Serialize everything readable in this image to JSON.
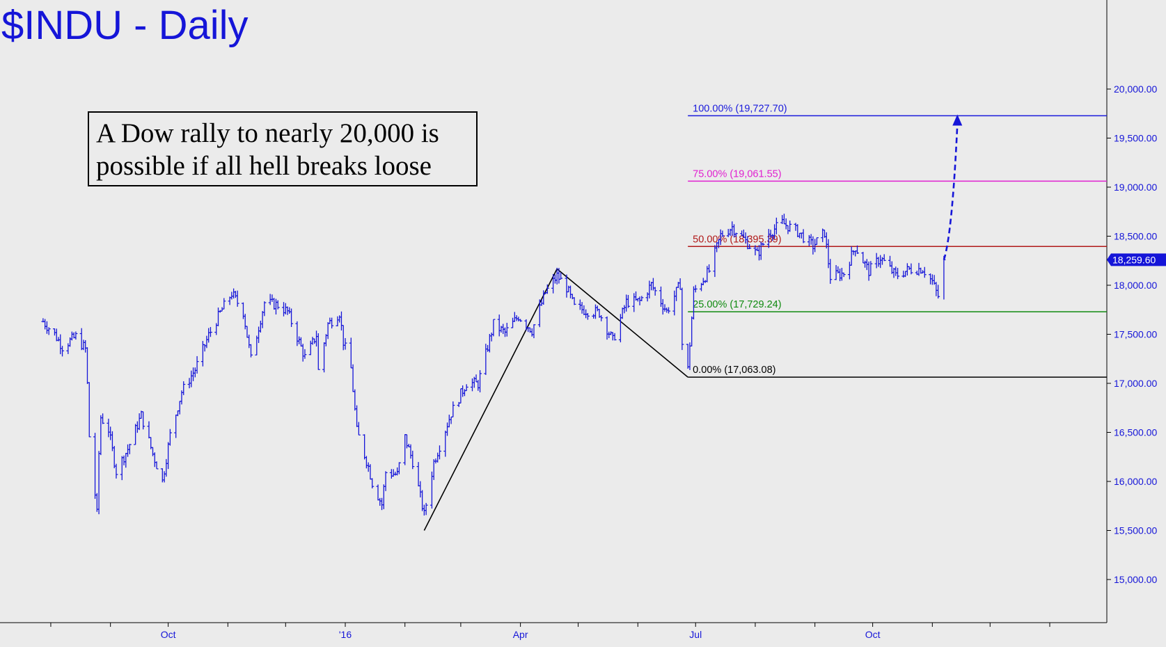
{
  "chart_data": {
    "type": "line",
    "title": "$INDU - Daily",
    "annotation_lines": [
      "A Dow rally to nearly 20,000 is",
      "possible if all hell breaks loose"
    ],
    "x_tick_labels": [
      "Oct",
      "'16",
      "Apr",
      "Jul",
      "Oct"
    ],
    "y_ticks": [
      15000,
      15500,
      16000,
      16500,
      17000,
      17500,
      18000,
      18500,
      19000,
      19500,
      20000
    ],
    "y_tick_labels": [
      "15,000.00",
      "15,500.00",
      "16,000.00",
      "16,500.00",
      "17,000.00",
      "17,500.00",
      "18,000.00",
      "18,500.00",
      "19,000.00",
      "19,500.00",
      "20,000.00"
    ],
    "ylim": [
      14550,
      20650
    ],
    "xlim": [
      "2015-07-28",
      "2016-12-31"
    ],
    "last_price": 18259.6,
    "last_price_label": "18,259.60",
    "series": [
      {
        "values": [
          [
            "2015-07-28",
            17630
          ],
          [
            "2015-08-03",
            17500
          ],
          [
            "2015-08-07",
            17373
          ],
          [
            "2015-08-14",
            17477
          ],
          [
            "2015-08-19",
            17348
          ],
          [
            "2015-08-20",
            16990
          ],
          [
            "2015-08-21",
            16460
          ],
          [
            "2015-08-24",
            15871
          ],
          [
            "2015-08-25",
            15666
          ],
          [
            "2015-08-26",
            16285
          ],
          [
            "2015-08-27",
            16654
          ],
          [
            "2015-08-31",
            16528
          ],
          [
            "2015-09-04",
            16102
          ],
          [
            "2015-09-10",
            16330
          ],
          [
            "2015-09-17",
            16674
          ],
          [
            "2015-09-23",
            16280
          ],
          [
            "2015-09-28",
            16001
          ],
          [
            "2015-10-02",
            16472
          ],
          [
            "2015-10-08",
            16912
          ],
          [
            "2015-10-15",
            17141
          ],
          [
            "2015-10-22",
            17489
          ],
          [
            "2015-10-29",
            17755
          ],
          [
            "2015-11-03",
            17918
          ],
          [
            "2015-11-09",
            17730
          ],
          [
            "2015-11-13",
            17245
          ],
          [
            "2015-11-20",
            17823
          ],
          [
            "2015-11-27",
            17798
          ],
          [
            "2015-12-02",
            17730
          ],
          [
            "2015-12-11",
            17265
          ],
          [
            "2015-12-14",
            17368
          ],
          [
            "2015-12-17",
            17495
          ],
          [
            "2015-12-18",
            17128
          ],
          [
            "2015-12-23",
            17603
          ],
          [
            "2015-12-29",
            17720
          ],
          [
            "2015-12-31",
            17425
          ],
          [
            "2016-01-04",
            17149
          ],
          [
            "2016-01-07",
            16514
          ],
          [
            "2016-01-13",
            16151
          ],
          [
            "2016-01-15",
            15988
          ],
          [
            "2016-01-20",
            15766
          ],
          [
            "2016-01-22",
            16093
          ],
          [
            "2016-01-28",
            16070
          ],
          [
            "2016-02-01",
            16449
          ],
          [
            "2016-02-05",
            16205
          ],
          [
            "2016-02-11",
            15660
          ],
          [
            "2016-02-16",
            16196
          ],
          [
            "2016-02-25",
            16697
          ],
          [
            "2016-03-04",
            17006
          ],
          [
            "2016-03-10",
            16995
          ],
          [
            "2016-03-18",
            17602
          ],
          [
            "2016-03-24",
            17515
          ],
          [
            "2016-03-31",
            17685
          ],
          [
            "2016-04-07",
            17541
          ],
          [
            "2016-04-14",
            17926
          ],
          [
            "2016-04-20",
            18096
          ],
          [
            "2016-04-25",
            17977
          ],
          [
            "2016-04-29",
            17773
          ],
          [
            "2016-05-06",
            17740
          ],
          [
            "2016-05-12",
            17720
          ],
          [
            "2016-05-19",
            17435
          ],
          [
            "2016-05-26",
            17828
          ],
          [
            "2016-06-02",
            17838
          ],
          [
            "2016-06-08",
            18005
          ],
          [
            "2016-06-16",
            17733
          ],
          [
            "2016-06-23",
            18011
          ],
          [
            "2016-06-24",
            17400
          ],
          [
            "2016-06-27",
            17140
          ],
          [
            "2016-06-30",
            17930
          ],
          [
            "2016-07-08",
            18146
          ],
          [
            "2016-07-14",
            18506
          ],
          [
            "2016-07-20",
            18595
          ],
          [
            "2016-07-26",
            18473
          ],
          [
            "2016-08-02",
            18313
          ],
          [
            "2016-08-08",
            18529
          ],
          [
            "2016-08-15",
            18636
          ],
          [
            "2016-08-23",
            18547
          ],
          [
            "2016-08-31",
            18400
          ],
          [
            "2016-09-06",
            18538
          ],
          [
            "2016-09-09",
            18085
          ],
          [
            "2016-09-16",
            18124
          ],
          [
            "2016-09-22",
            18392
          ],
          [
            "2016-09-29",
            18143
          ],
          [
            "2016-10-05",
            18281
          ],
          [
            "2016-10-13",
            18098
          ],
          [
            "2016-10-20",
            18162
          ],
          [
            "2016-10-27",
            18169
          ],
          [
            "2016-11-01",
            18037
          ],
          [
            "2016-11-03",
            17931
          ],
          [
            "2016-11-04",
            17888
          ],
          [
            "2016-11-07",
            18259
          ]
        ]
      }
    ],
    "swing_points": [
      [
        "2016-02-11",
        15500
      ],
      [
        "2016-04-20",
        18167
      ],
      [
        "2016-06-27",
        17063
      ]
    ],
    "fib_levels": [
      {
        "label": "100.00% (19,727.70)",
        "value": 19727.7,
        "color": "#1a1adc"
      },
      {
        "label": "75.00% (19,061.55)",
        "value": 19061.55,
        "color": "#e020d0"
      },
      {
        "label": "50.00% (18,395.39)",
        "value": 18395.39,
        "color": "#b01818"
      },
      {
        "label": "25.00% (17,729.24)",
        "value": 17729.24,
        "color": "#0f8a0f"
      },
      {
        "label": "0.00% (17,063.08)",
        "value": 17063.08,
        "color": "#000000"
      }
    ],
    "projection_arrow": {
      "from": [
        "2016-11-07",
        18259
      ],
      "to": [
        "2016-11-14",
        19727
      ]
    },
    "grid": false,
    "legend": "none"
  },
  "colors": {
    "background": "#ebebeb",
    "price": "#1515d8",
    "axis": "#000000"
  }
}
